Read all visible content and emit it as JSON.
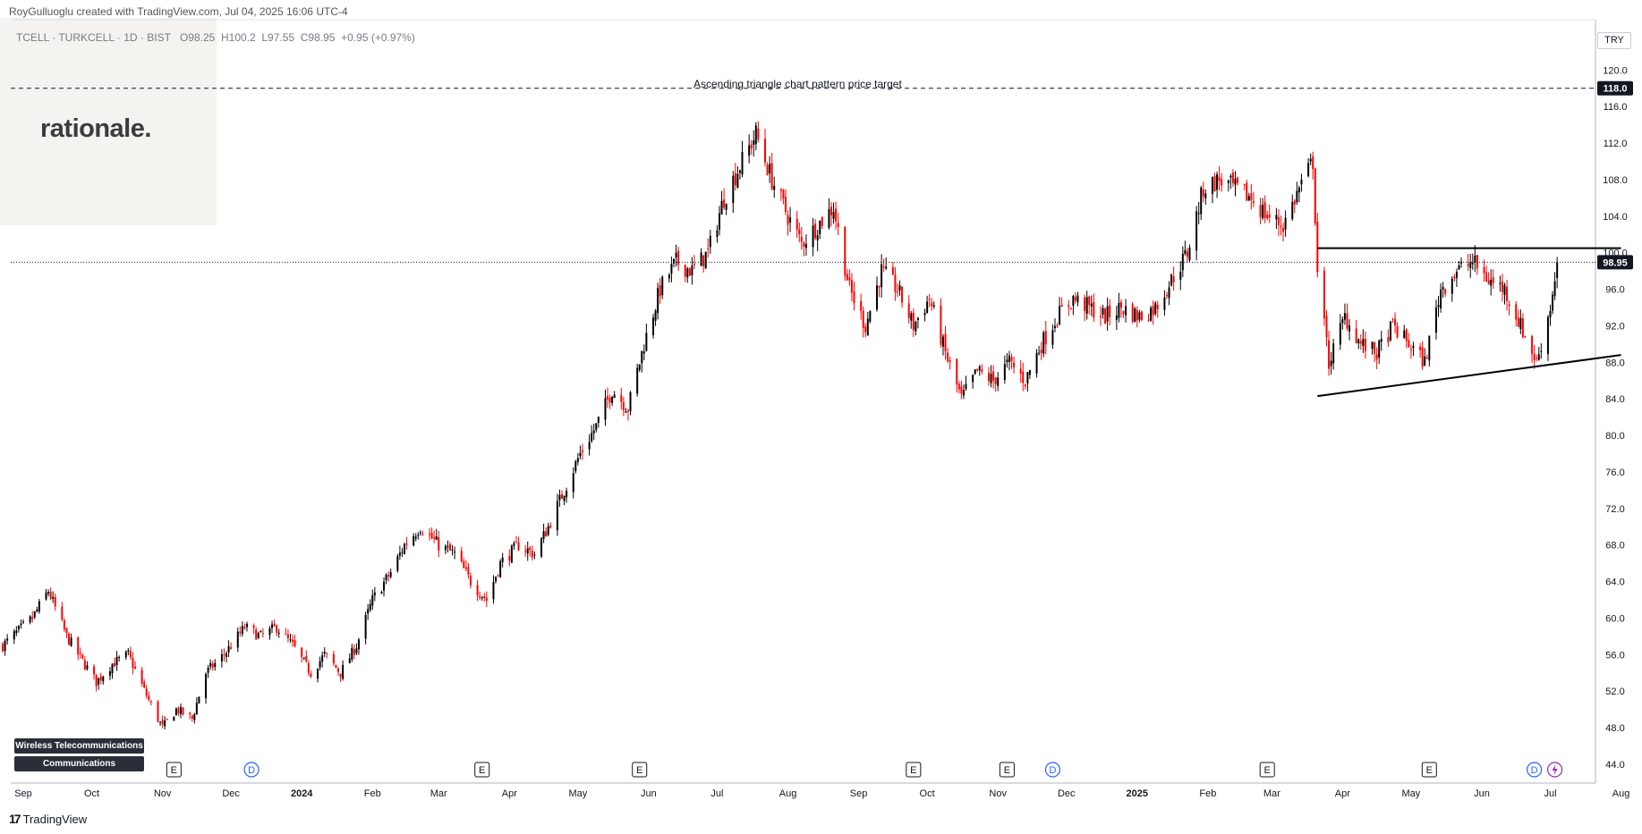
{
  "header": {
    "credit": "RoyGulluoglu created with TradingView.com, Jul 04, 2025 16:06 UTC-4",
    "symbol": "TCELL · TURKCELL · 1D · BIST",
    "ohlc": {
      "o": "O98.25",
      "h": "H100.2",
      "l": "L97.55",
      "c": "C98.95",
      "chg": "+0.95 (+0.97%)"
    }
  },
  "logo": "rationale.",
  "currency": "TRY",
  "annotation": "Ascending triangle chart pattern price target",
  "tags": [
    "Wireless Telecommunications",
    "Communications"
  ],
  "footer": "TradingView",
  "colors": {
    "up": "#000000",
    "down": "#ff0000",
    "bg": "#ffffff",
    "text": "#131722"
  },
  "chart_data": {
    "type": "candlestick",
    "title": "TCELL · TURKCELL · 1D · BIST",
    "y_ticks": [
      44,
      48,
      52,
      56,
      60,
      64,
      68,
      72,
      76,
      80,
      84,
      88,
      92,
      96,
      100,
      104,
      108,
      112,
      116,
      120
    ],
    "ylim": [
      43,
      121.5
    ],
    "x_ticks": [
      {
        "label": "Sep",
        "date": "2023-09-01"
      },
      {
        "label": "Oct",
        "date": "2023-10-01"
      },
      {
        "label": "Nov",
        "date": "2023-11-01"
      },
      {
        "label": "Dec",
        "date": "2023-12-01"
      },
      {
        "label": "2024",
        "date": "2024-01-01"
      },
      {
        "label": "Feb",
        "date": "2024-02-01"
      },
      {
        "label": "Mar",
        "date": "2024-03-01"
      },
      {
        "label": "Apr",
        "date": "2024-04-01"
      },
      {
        "label": "May",
        "date": "2024-05-01"
      },
      {
        "label": "Jun",
        "date": "2024-06-01"
      },
      {
        "label": "Jul",
        "date": "2024-07-01"
      },
      {
        "label": "Aug",
        "date": "2024-08-01"
      },
      {
        "label": "Sep",
        "date": "2024-09-01"
      },
      {
        "label": "Oct",
        "date": "2024-10-01"
      },
      {
        "label": "Nov",
        "date": "2024-11-01"
      },
      {
        "label": "Dec",
        "date": "2024-12-01"
      },
      {
        "label": "2025",
        "date": "2025-01-01"
      },
      {
        "label": "Feb",
        "date": "2025-02-01"
      },
      {
        "label": "Mar",
        "date": "2025-03-01"
      },
      {
        "label": "Apr",
        "date": "2025-04-01"
      },
      {
        "label": "May",
        "date": "2025-05-01"
      },
      {
        "label": "Jun",
        "date": "2025-06-01"
      },
      {
        "label": "Jul",
        "date": "2025-07-01"
      },
      {
        "label": "Aug",
        "date": "2025-08-01"
      }
    ],
    "anchors": [
      [
        "2023-08-23",
        57
      ],
      [
        "2023-09-05",
        60
      ],
      [
        "2023-09-12",
        63
      ],
      [
        "2023-09-20",
        58
      ],
      [
        "2023-10-03",
        53
      ],
      [
        "2023-10-10",
        55
      ],
      [
        "2023-10-17",
        56
      ],
      [
        "2023-10-26",
        51
      ],
      [
        "2023-11-01",
        48
      ],
      [
        "2023-11-07",
        50
      ],
      [
        "2023-11-14",
        49
      ],
      [
        "2023-11-20",
        54
      ],
      [
        "2023-11-28",
        56
      ],
      [
        "2023-12-07",
        59
      ],
      [
        "2023-12-14",
        58
      ],
      [
        "2023-12-21",
        59
      ],
      [
        "2023-12-28",
        57
      ],
      [
        "2024-01-05",
        54
      ],
      [
        "2024-01-11",
        56
      ],
      [
        "2024-01-18",
        54
      ],
      [
        "2024-01-25",
        57
      ],
      [
        "2024-02-01",
        62
      ],
      [
        "2024-02-09",
        65
      ],
      [
        "2024-02-15",
        68
      ],
      [
        "2024-02-22",
        70
      ],
      [
        "2024-03-01",
        68
      ],
      [
        "2024-03-08",
        67
      ],
      [
        "2024-03-15",
        64
      ],
      [
        "2024-03-22",
        62
      ],
      [
        "2024-03-28",
        66
      ],
      [
        "2024-04-05",
        68
      ],
      [
        "2024-04-12",
        67
      ],
      [
        "2024-04-18",
        70
      ],
      [
        "2024-04-25",
        74
      ],
      [
        "2024-05-02",
        78
      ],
      [
        "2024-05-09",
        81
      ],
      [
        "2024-05-16",
        85
      ],
      [
        "2024-05-23",
        83
      ],
      [
        "2024-05-30",
        90
      ],
      [
        "2024-06-06",
        96
      ],
      [
        "2024-06-13",
        99
      ],
      [
        "2024-06-20",
        98
      ],
      [
        "2024-06-27",
        100
      ],
      [
        "2024-07-04",
        106
      ],
      [
        "2024-07-12",
        110
      ],
      [
        "2024-07-18",
        113
      ],
      [
        "2024-07-25",
        108
      ],
      [
        "2024-08-01",
        104
      ],
      [
        "2024-08-07",
        101
      ],
      [
        "2024-08-14",
        103
      ],
      [
        "2024-08-21",
        105
      ],
      [
        "2024-08-28",
        96
      ],
      [
        "2024-09-04",
        92
      ],
      [
        "2024-09-11",
        98
      ],
      [
        "2024-09-18",
        96
      ],
      [
        "2024-09-25",
        92
      ],
      [
        "2024-10-02",
        95
      ],
      [
        "2024-10-09",
        89
      ],
      [
        "2024-10-16",
        84
      ],
      [
        "2024-10-23",
        87
      ],
      [
        "2024-10-30",
        86
      ],
      [
        "2024-11-06",
        88
      ],
      [
        "2024-11-13",
        86
      ],
      [
        "2024-11-20",
        90
      ],
      [
        "2024-11-27",
        93
      ],
      [
        "2024-12-04",
        95
      ],
      [
        "2024-12-11",
        94
      ],
      [
        "2024-12-18",
        93
      ],
      [
        "2024-12-25",
        94
      ],
      [
        "2025-01-02",
        93
      ],
      [
        "2025-01-09",
        94
      ],
      [
        "2025-01-16",
        97
      ],
      [
        "2025-01-23",
        100
      ],
      [
        "2025-01-30",
        107
      ],
      [
        "2025-02-06",
        108
      ],
      [
        "2025-02-13",
        107
      ],
      [
        "2025-02-20",
        106
      ],
      [
        "2025-02-27",
        104
      ],
      [
        "2025-03-06",
        103
      ],
      [
        "2025-03-13",
        107
      ],
      [
        "2025-03-19",
        110
      ],
      [
        "2025-03-21",
        98
      ],
      [
        "2025-03-26",
        88
      ],
      [
        "2025-04-02",
        93
      ],
      [
        "2025-04-09",
        90
      ],
      [
        "2025-04-16",
        89
      ],
      [
        "2025-04-23",
        92
      ],
      [
        "2025-04-30",
        90
      ],
      [
        "2025-05-07",
        88
      ],
      [
        "2025-05-14",
        96
      ],
      [
        "2025-05-21",
        98
      ],
      [
        "2025-05-28",
        99
      ],
      [
        "2025-06-04",
        97
      ],
      [
        "2025-06-11",
        96
      ],
      [
        "2025-06-18",
        92
      ],
      [
        "2025-06-25",
        88
      ],
      [
        "2025-07-01",
        94
      ],
      [
        "2025-07-04",
        98.95
      ]
    ],
    "last_price": 98.95,
    "target_price": 118.0,
    "resistance": {
      "from": "2025-03-21",
      "to": "2025-08-01",
      "price": 100.5
    },
    "support": {
      "from": "2025-03-21",
      "to": "2025-08-01",
      "price_from": 84.3,
      "price_to": 88.8
    },
    "last_label": "98.95",
    "target_label": "118.0",
    "events": [
      {
        "date": "2023-11-06",
        "type": "E"
      },
      {
        "date": "2023-12-10",
        "type": "D"
      },
      {
        "date": "2024-03-20",
        "type": "E"
      },
      {
        "date": "2024-05-28",
        "type": "E"
      },
      {
        "date": "2024-09-25",
        "type": "E"
      },
      {
        "date": "2024-11-05",
        "type": "E"
      },
      {
        "date": "2024-11-25",
        "type": "D"
      },
      {
        "date": "2025-02-27",
        "type": "E"
      },
      {
        "date": "2025-05-09",
        "type": "E"
      },
      {
        "date": "2025-06-24",
        "type": "D"
      },
      {
        "date": "2025-07-03",
        "type": "S"
      }
    ]
  }
}
